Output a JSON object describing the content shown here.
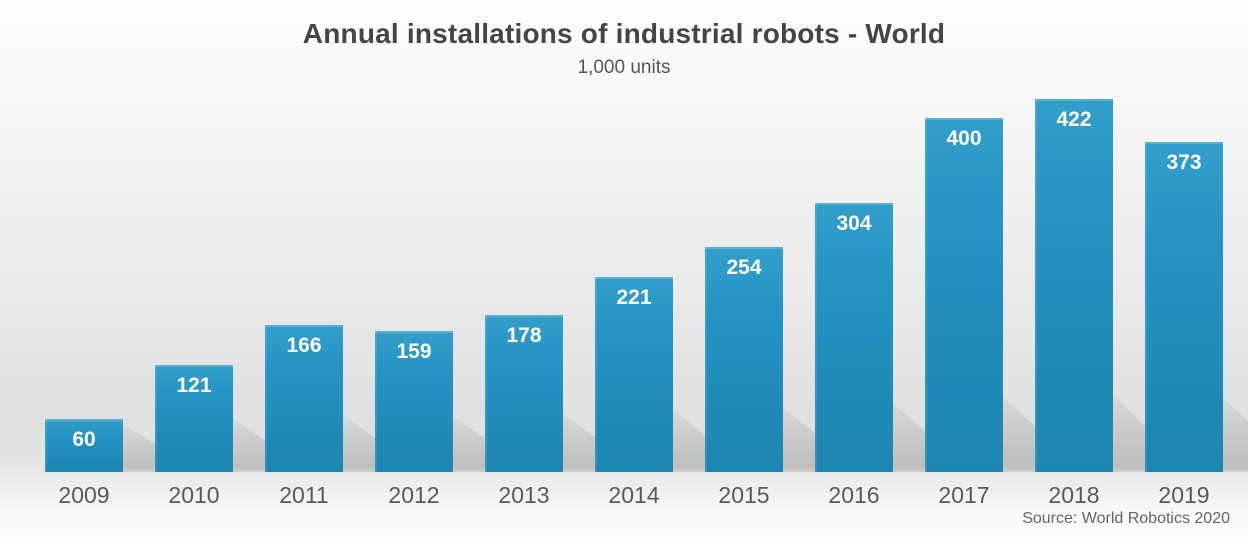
{
  "chart_data": {
    "type": "bar",
    "title": "Annual installations of industrial robots - World",
    "subtitle": "1,000 units",
    "categories": [
      "2009",
      "2010",
      "2011",
      "2012",
      "2013",
      "2014",
      "2015",
      "2016",
      "2017",
      "2018",
      "2019"
    ],
    "values": [
      60,
      121,
      166,
      159,
      178,
      221,
      254,
      304,
      400,
      422,
      373
    ],
    "source": "Source: World Robotics 2020",
    "xlabel": "",
    "ylabel": "",
    "ylim": [
      0,
      440
    ],
    "grid": false,
    "legend": false,
    "bar_color_top": "#319ecb",
    "bar_color_bottom": "#1d85b1",
    "value_label_color": "#ffffff",
    "axis_label_color": "#58595b",
    "title_color": "#454545",
    "background_top": "#ffffff",
    "background_mid": "#e0e0e0"
  }
}
